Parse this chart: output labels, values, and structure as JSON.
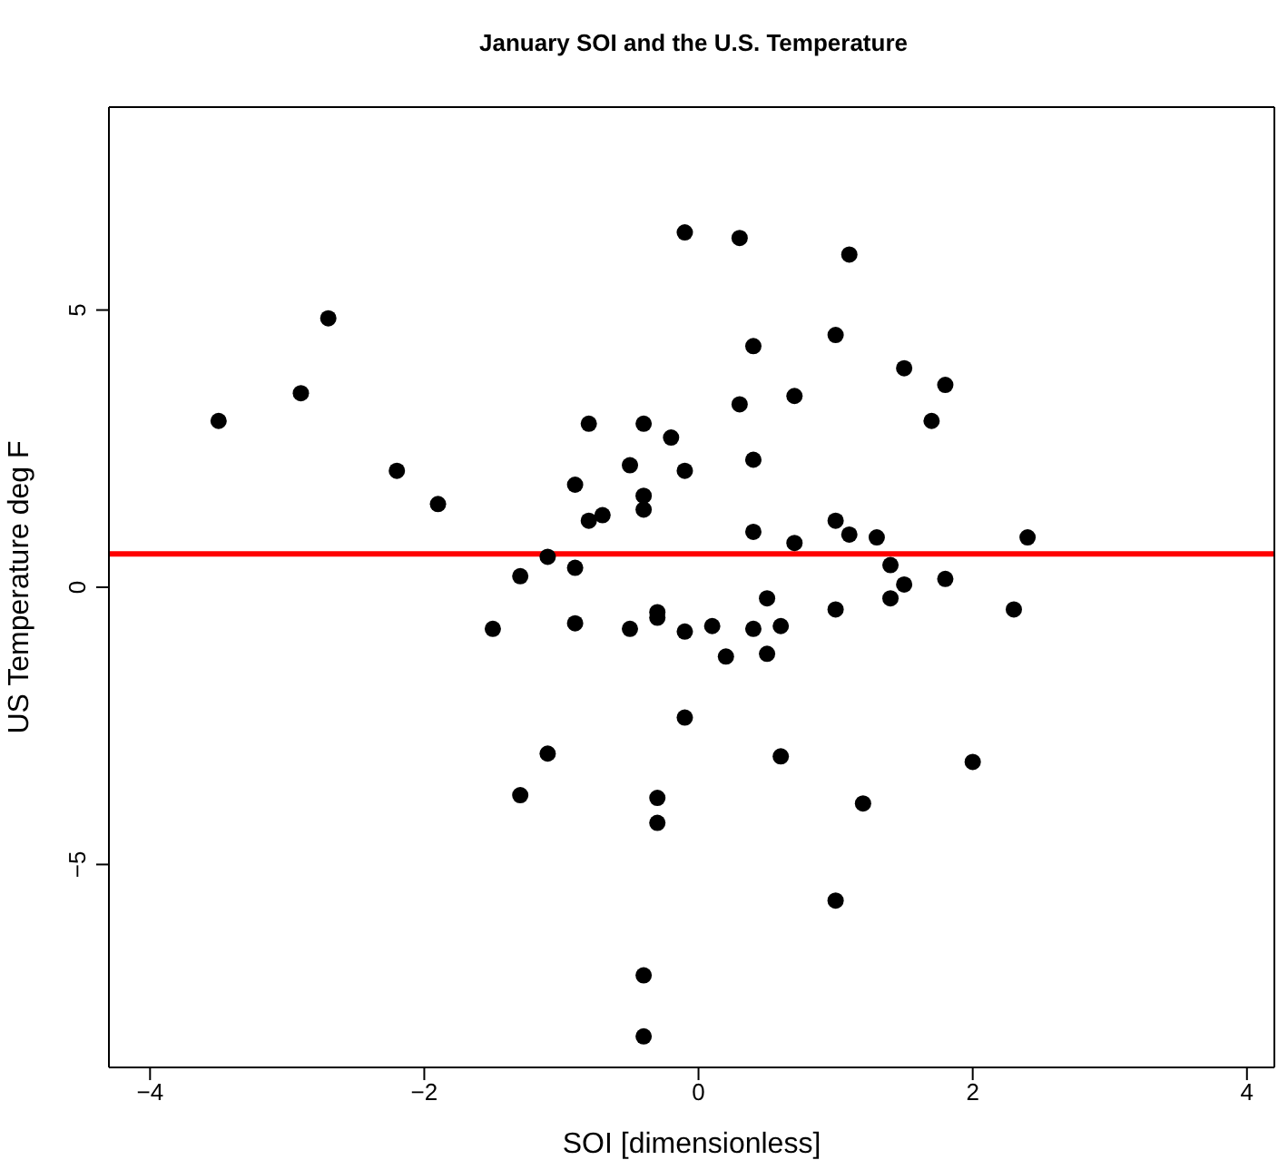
{
  "chart_data": {
    "type": "scatter",
    "title": "January SOI and the U.S. Temperature",
    "xlabel": "SOI [dimensionless]",
    "ylabel": "US Temperature deg F",
    "xlim": [
      -4.3,
      4.2
    ],
    "ylim": [
      -8.66,
      8.66
    ],
    "xticks": [
      -4,
      -2,
      0,
      2,
      4
    ],
    "yticks": [
      -5,
      0,
      5
    ],
    "marker": "circle",
    "series": [
      {
        "color": "#000000",
        "x": [
          -3.5,
          -2.9,
          -2.7,
          -2.2,
          -1.9,
          -1.5,
          -1.3,
          -1.1,
          -1.3,
          -1.1,
          -0.9,
          -0.9,
          -0.9,
          -0.8,
          -0.8,
          -0.7,
          -0.5,
          -0.5,
          -0.4,
          -0.4,
          -0.4,
          -0.4,
          -0.4,
          -0.3,
          -0.3,
          -0.3,
          -0.3,
          -0.2,
          -0.1,
          -0.1,
          -0.1,
          -0.1,
          0.1,
          0.2,
          0.3,
          0.3,
          0.4,
          0.4,
          0.4,
          0.4,
          0.5,
          0.5,
          0.6,
          0.6,
          0.7,
          0.7,
          1.0,
          1.0,
          1.0,
          1.0,
          1.1,
          1.1,
          1.2,
          1.3,
          1.4,
          1.4,
          1.5,
          1.5,
          1.7,
          1.8,
          1.8,
          2.0,
          2.3,
          2.4
        ],
        "values": [
          3.0,
          3.5,
          4.85,
          2.1,
          1.5,
          -0.75,
          0.2,
          0.55,
          -3.75,
          -3.0,
          1.85,
          0.35,
          -0.65,
          2.95,
          1.2,
          1.3,
          2.2,
          -0.75,
          2.95,
          1.65,
          1.4,
          -7.0,
          -8.1,
          -0.45,
          -0.55,
          -3.8,
          -4.25,
          2.7,
          6.4,
          2.1,
          -0.8,
          -2.35,
          -0.7,
          -1.25,
          6.3,
          3.3,
          4.35,
          2.3,
          1.0,
          -0.75,
          -0.2,
          -1.2,
          -0.7,
          -3.05,
          3.45,
          0.8,
          4.55,
          1.2,
          -0.4,
          -5.65,
          6.0,
          0.95,
          -3.9,
          0.9,
          0.4,
          -0.2,
          3.95,
          0.05,
          3.0,
          3.65,
          0.15,
          -3.15,
          -0.4,
          0.9
        ]
      }
    ],
    "ref_lines": [
      {
        "axis": "y",
        "value": 0.6,
        "color": "#ff0000"
      }
    ]
  }
}
